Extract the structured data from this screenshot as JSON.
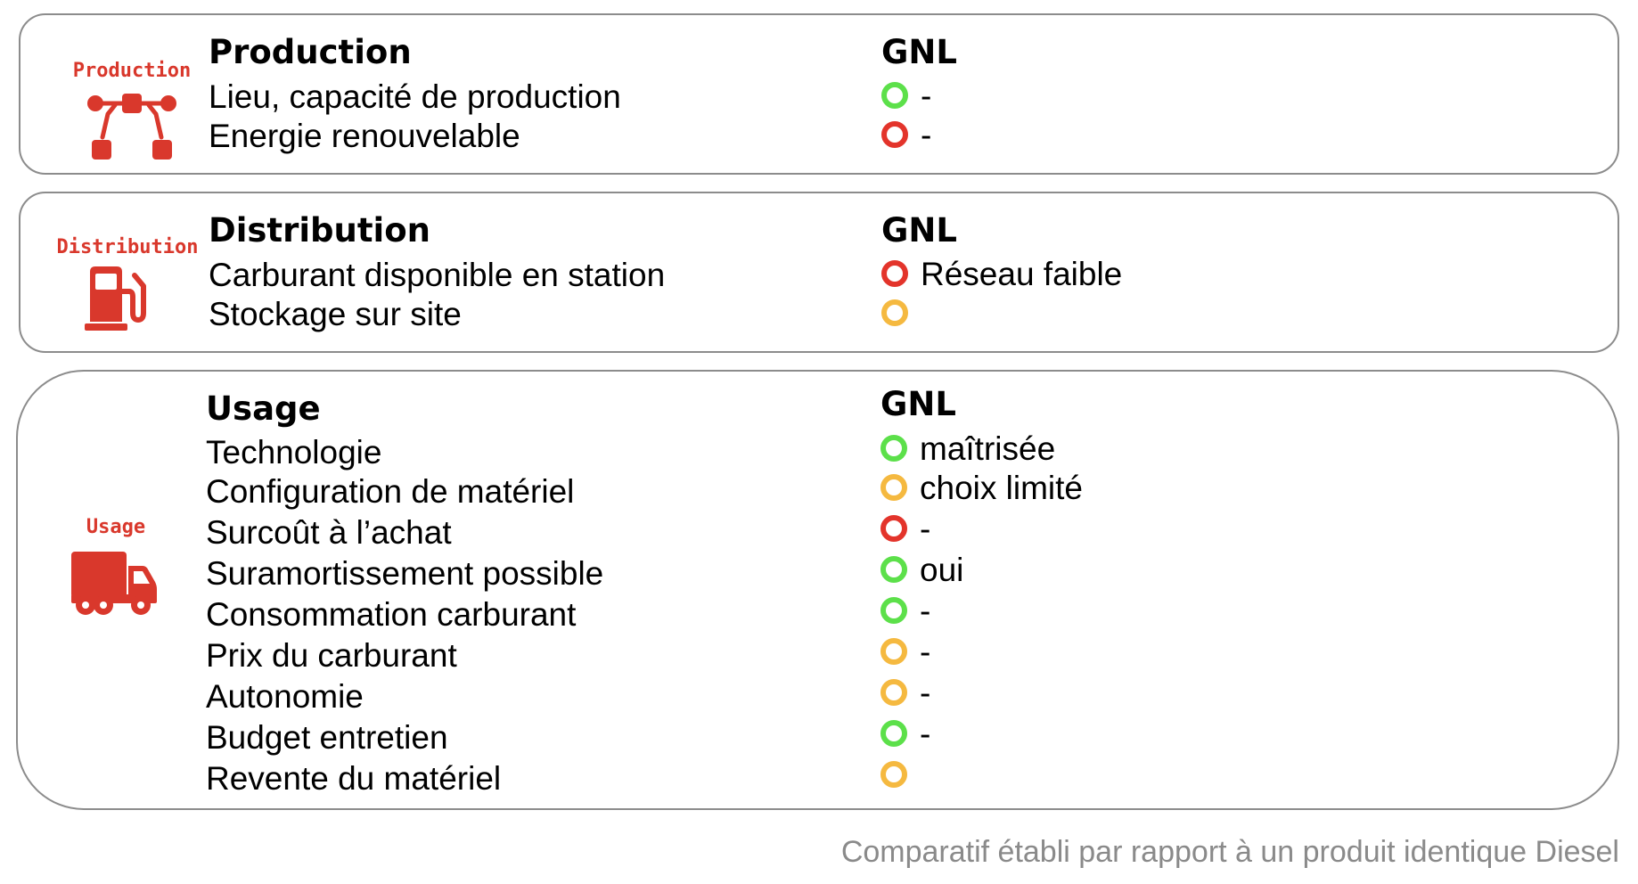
{
  "colors": {
    "accent_red": "#d9382c",
    "status_green": "#5ce04a",
    "status_orange": "#f5b940",
    "status_red": "#e3342b",
    "border": "#8c8c8c",
    "footnote": "#8a8a8a"
  },
  "sections": {
    "production": {
      "side_label": "Production",
      "icon": "network-nodes-icon",
      "title": "Production",
      "column_header": "GNL",
      "rows": [
        {
          "criterion": "Lieu, capacité de production",
          "status": "green",
          "value": "-"
        },
        {
          "criterion": "Energie renouvelable",
          "status": "red",
          "value": "-"
        }
      ]
    },
    "distribution": {
      "side_label": "Distribution",
      "icon": "fuel-pump-icon",
      "title": "Distribution",
      "column_header": "GNL",
      "rows": [
        {
          "criterion": "Carburant disponible en station",
          "status": "red",
          "value": "Réseau faible"
        },
        {
          "criterion": "Stockage sur site",
          "status": "orange",
          "value": ""
        }
      ]
    },
    "usage": {
      "side_label": "Usage",
      "icon": "delivery-truck-icon",
      "title": "Usage",
      "column_header": "GNL",
      "rows": [
        {
          "criterion": "Technologie",
          "status": "green",
          "value": "maîtrisée"
        },
        {
          "criterion": "Configuration de matériel",
          "status": "orange",
          "value": "choix limité"
        },
        {
          "criterion": "Surcoût à l’achat",
          "status": "red",
          "value": "-"
        },
        {
          "criterion": "Suramortissement possible",
          "status": "green",
          "value": "oui"
        },
        {
          "criterion": "Consommation carburant",
          "status": "green",
          "value": "-"
        },
        {
          "criterion": "Prix du carburant",
          "status": "orange",
          "value": "-"
        },
        {
          "criterion": "Autonomie",
          "status": "orange",
          "value": "-"
        },
        {
          "criterion": "Budget entretien",
          "status": "green",
          "value": "-"
        },
        {
          "criterion": "Revente du matériel",
          "status": "orange",
          "value": ""
        }
      ]
    }
  },
  "footnote": "Comparatif établi par rapport à un produit identique Diesel"
}
